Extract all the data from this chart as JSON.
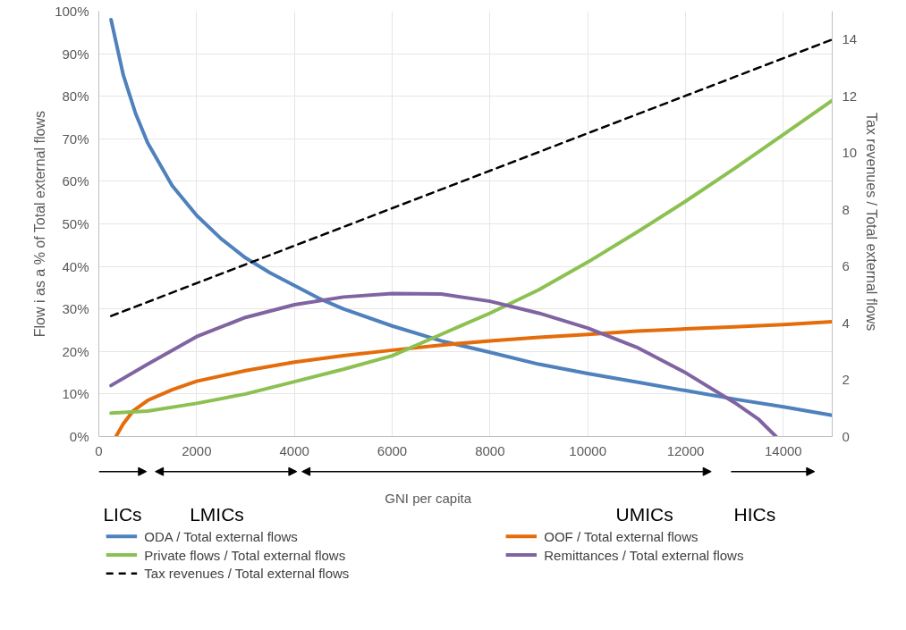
{
  "chart_data": {
    "type": "line",
    "xlabel": "GNI per capita",
    "ylabel": "Flow i as a % of Total external flows",
    "y2label": "Tax revenues  / Total external flows",
    "annotations": [
      "LICs",
      "LMICs",
      "UMICs",
      "HICs"
    ],
    "series": [
      {
        "name": "ODA / Total external flows",
        "color": "#4f81bd",
        "x": [
          250,
          500,
          750,
          1000,
          1500,
          2000,
          2500,
          3000,
          3500,
          4000,
          4500,
          5000,
          6000,
          7000,
          8000,
          9000,
          10000,
          11000,
          12000,
          13000,
          14000,
          15000
        ],
        "values": [
          98,
          85,
          76,
          69,
          59,
          52,
          46.5,
          42,
          38.5,
          35.5,
          32.5,
          30,
          26,
          22.5,
          19.8,
          17,
          14.8,
          12.8,
          10.8,
          8.8,
          7,
          5
        ]
      },
      {
        "name": "OOF / Total external flows",
        "color": "#e46c0a",
        "x": [
          350,
          500,
          700,
          1000,
          1500,
          2000,
          3000,
          4000,
          5000,
          6000,
          7000,
          8000,
          9000,
          10000,
          11000,
          12000,
          13000,
          14000,
          15000
        ],
        "values": [
          0,
          3,
          6,
          8.5,
          11,
          13,
          15.5,
          17.5,
          19,
          20.3,
          21.5,
          22.5,
          23.3,
          24,
          24.8,
          25.3,
          25.8,
          26.3,
          27
        ]
      },
      {
        "name": "Private flows / Total external flows",
        "color": "#8cc152",
        "x": [
          250,
          1000,
          2000,
          3000,
          4000,
          5000,
          6000,
          7000,
          8000,
          9000,
          10000,
          11000,
          12000,
          13000,
          14000,
          15000
        ],
        "values": [
          5.5,
          6,
          7.8,
          10,
          12.9,
          15.8,
          19,
          24,
          29,
          34.5,
          41,
          48,
          55.3,
          63,
          71,
          79
        ]
      },
      {
        "name": "Remittances / Total external flows",
        "color": "#8064a2",
        "x": [
          250,
          1000,
          2000,
          3000,
          4000,
          5000,
          6000,
          7000,
          8000,
          9000,
          10000,
          11000,
          12000,
          13000,
          13500,
          13850
        ],
        "values": [
          12,
          17,
          23.5,
          28,
          31,
          32.8,
          33.6,
          33.5,
          31.8,
          29,
          25.5,
          21,
          15,
          8,
          4,
          0
        ]
      },
      {
        "name": "Tax revenues / Total external flows",
        "color": "#000000",
        "axis": "y2",
        "line_style": "dashed",
        "x": [
          250,
          15000
        ],
        "values": [
          4.25,
          14
        ]
      }
    ],
    "xlim": [
      0,
      15000
    ],
    "xticks": [
      0,
      2000,
      4000,
      6000,
      8000,
      10000,
      12000,
      14000
    ],
    "ylim": [
      0,
      100
    ],
    "yticks": [
      {
        "value": 0,
        "label": "0%"
      },
      {
        "value": 10,
        "label": "10%"
      },
      {
        "value": 20,
        "label": "20%"
      },
      {
        "value": 30,
        "label": "30%"
      },
      {
        "value": 40,
        "label": "40%"
      },
      {
        "value": 50,
        "label": "50%"
      },
      {
        "value": 60,
        "label": "60%"
      },
      {
        "value": 70,
        "label": "70%"
      },
      {
        "value": 80,
        "label": "80%"
      },
      {
        "value": 90,
        "label": "90%"
      },
      {
        "value": 100,
        "label": "100%"
      }
    ],
    "y2lim": [
      0,
      15
    ],
    "y2ticks": [
      0,
      2,
      4,
      6,
      8,
      10,
      12,
      14
    ],
    "grid": true,
    "legend": "bottom",
    "marker": "none"
  }
}
